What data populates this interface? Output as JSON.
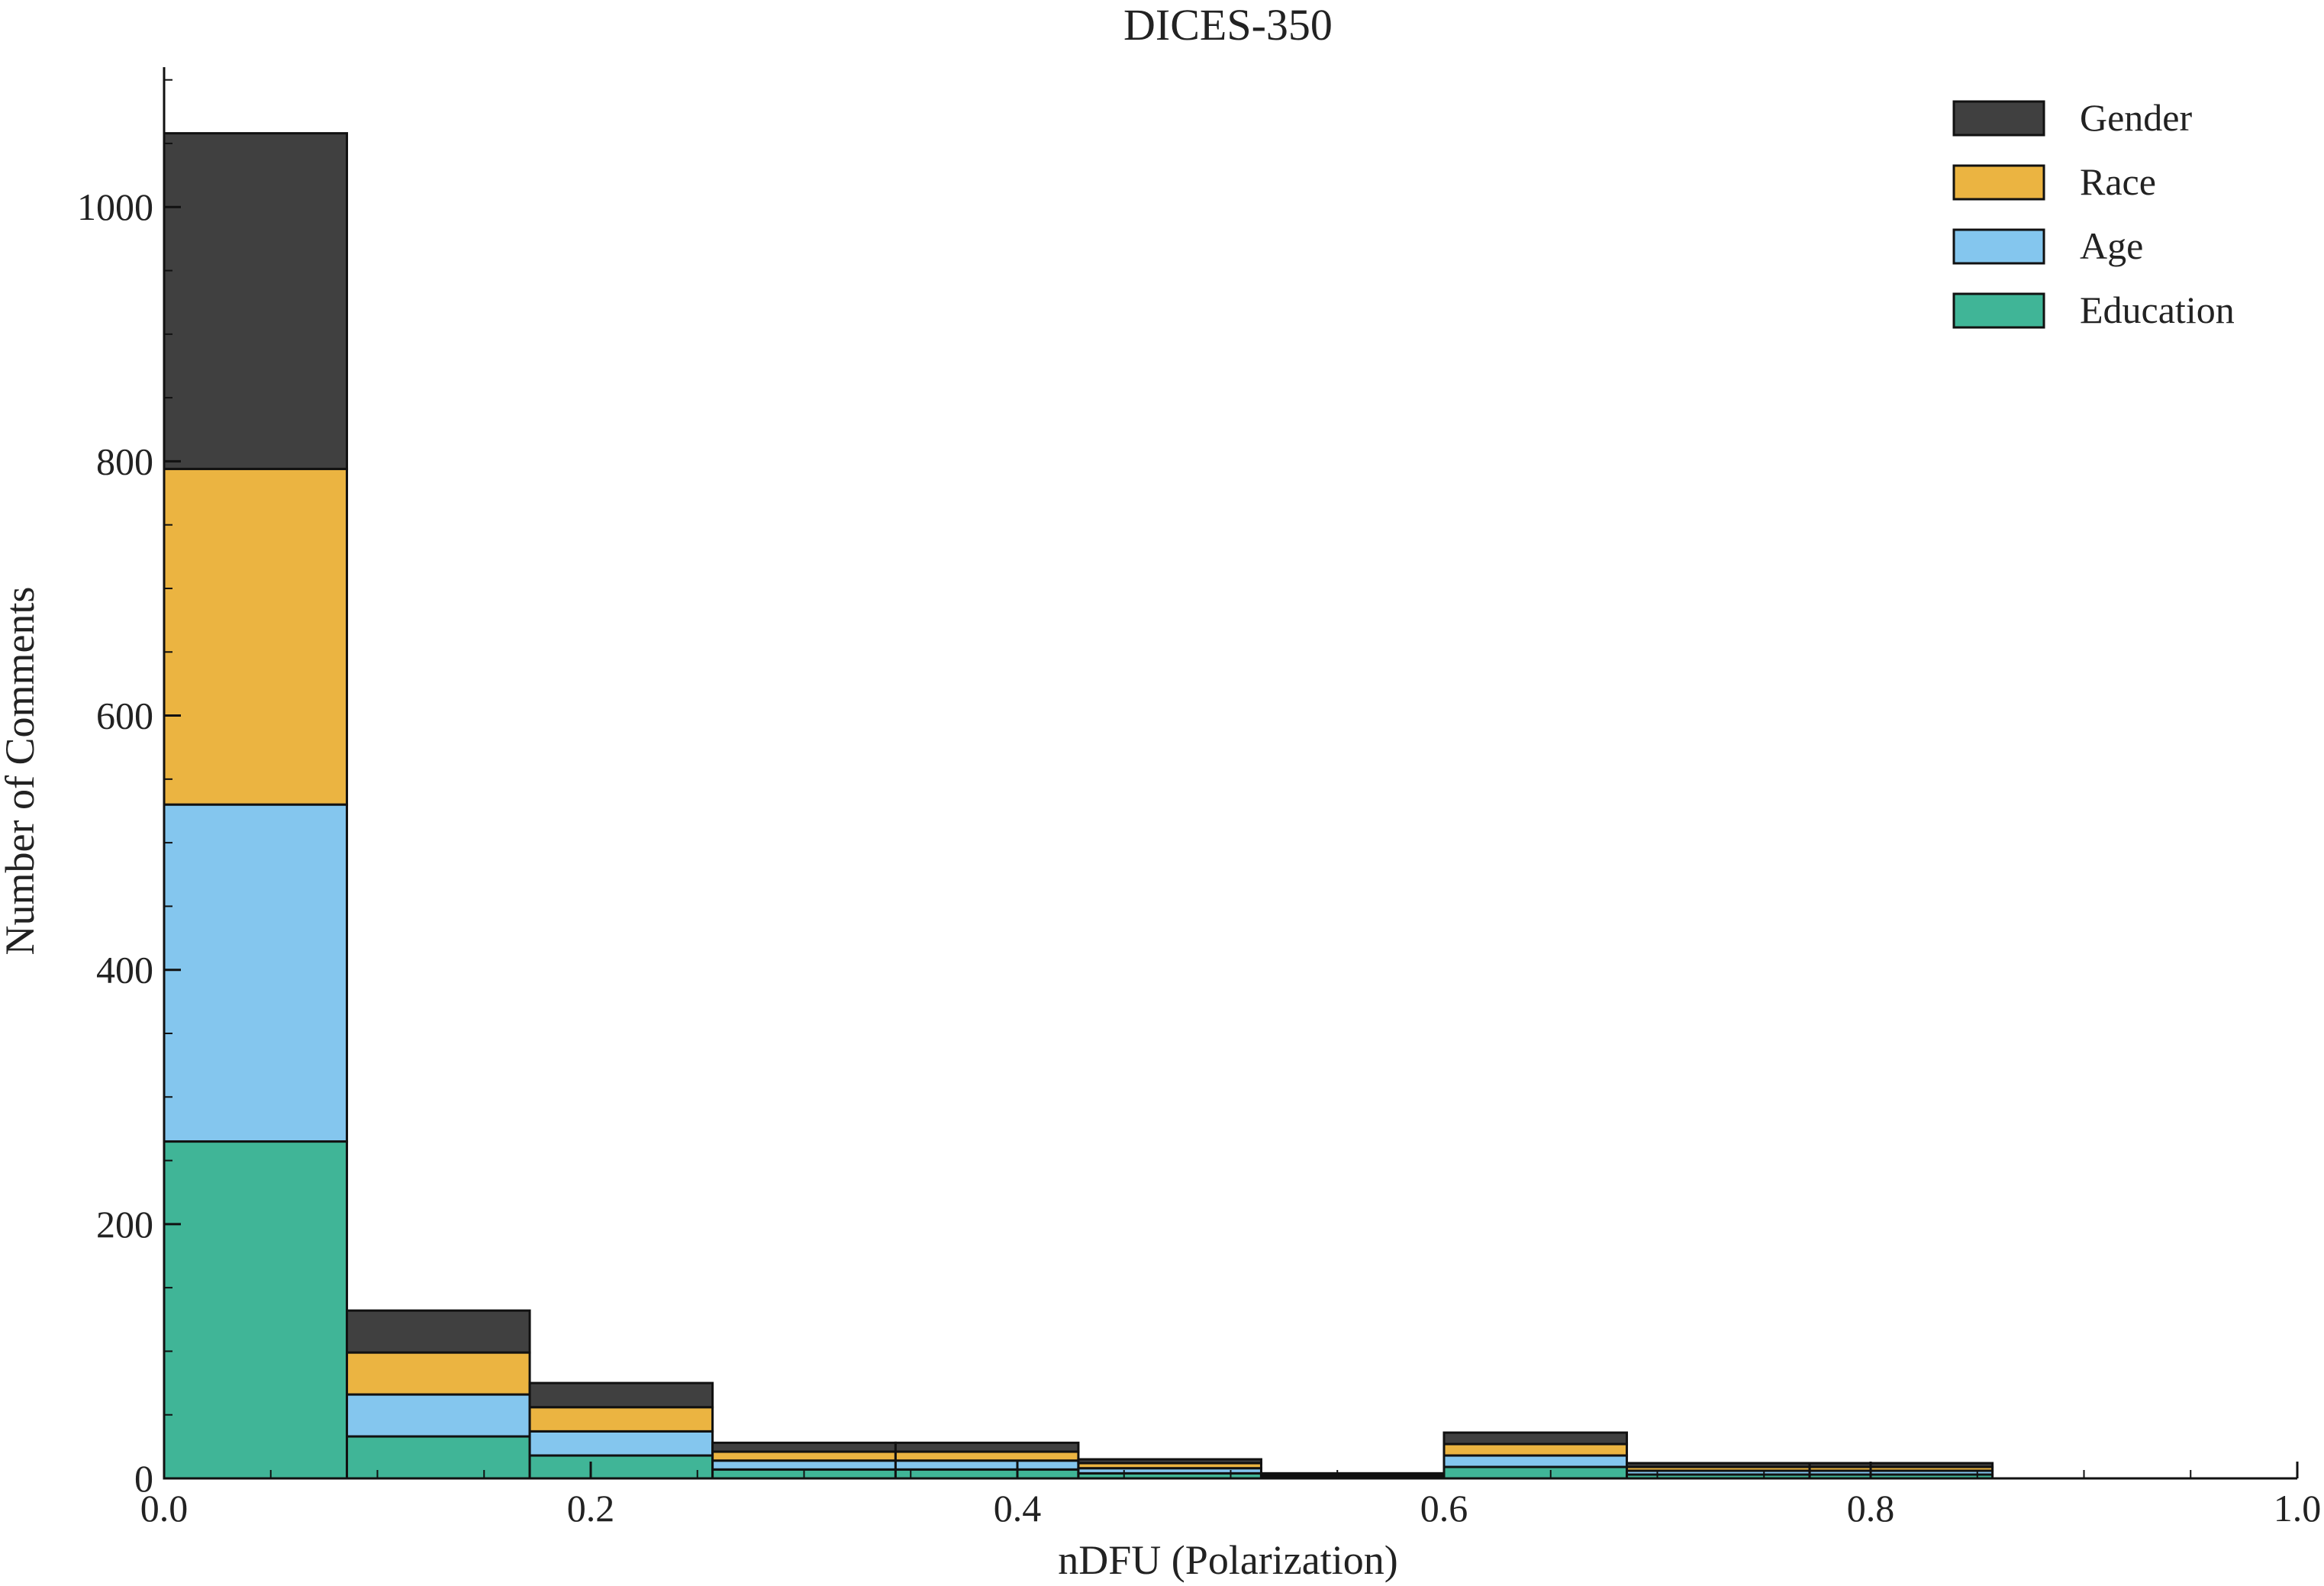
{
  "chart_data": {
    "type": "bar",
    "stacked": true,
    "title": "DICES-350",
    "xlabel": "nDFU (Polarization)",
    "ylabel": "Number of Comments",
    "xlim": [
      0.0,
      1.0
    ],
    "ylim": [
      0,
      1110
    ],
    "x_ticks": [
      {
        "value": 0.0,
        "label": "0.0"
      },
      {
        "value": 0.2,
        "label": "0.2"
      },
      {
        "value": 0.4,
        "label": "0.4"
      },
      {
        "value": 0.6,
        "label": "0.6"
      },
      {
        "value": 0.8,
        "label": "0.8"
      },
      {
        "value": 1.0,
        "label": "1.0"
      }
    ],
    "y_ticks": [
      {
        "value": 0,
        "label": "0"
      },
      {
        "value": 200,
        "label": "200"
      },
      {
        "value": 400,
        "label": "400"
      },
      {
        "value": 600,
        "label": "600"
      },
      {
        "value": 800,
        "label": "800"
      },
      {
        "value": 1000,
        "label": "1000"
      }
    ],
    "bin_edges": [
      0.0,
      0.0857,
      0.1714,
      0.2571,
      0.3429,
      0.4286,
      0.5143,
      0.6,
      0.6857,
      0.7714,
      0.8571
    ],
    "series": [
      {
        "name": "Education",
        "color": "#40b597",
        "values": [
          265,
          33,
          18,
          7,
          7,
          4,
          1,
          9,
          3,
          3
        ]
      },
      {
        "name": "Age",
        "color": "#84c6ee",
        "values": [
          265,
          33,
          19,
          7,
          7,
          4,
          1,
          9,
          3,
          3
        ]
      },
      {
        "name": "Race",
        "color": "#ebb441",
        "values": [
          264,
          33,
          19,
          7,
          7,
          4,
          1,
          9,
          3,
          3
        ]
      },
      {
        "name": "Gender",
        "color": "#404040",
        "values": [
          264,
          33,
          19,
          7,
          7,
          3,
          1,
          9,
          3,
          3
        ]
      }
    ],
    "legend": {
      "placement": "top-right",
      "order": [
        "Gender",
        "Race",
        "Age",
        "Education"
      ]
    },
    "grid": false
  }
}
